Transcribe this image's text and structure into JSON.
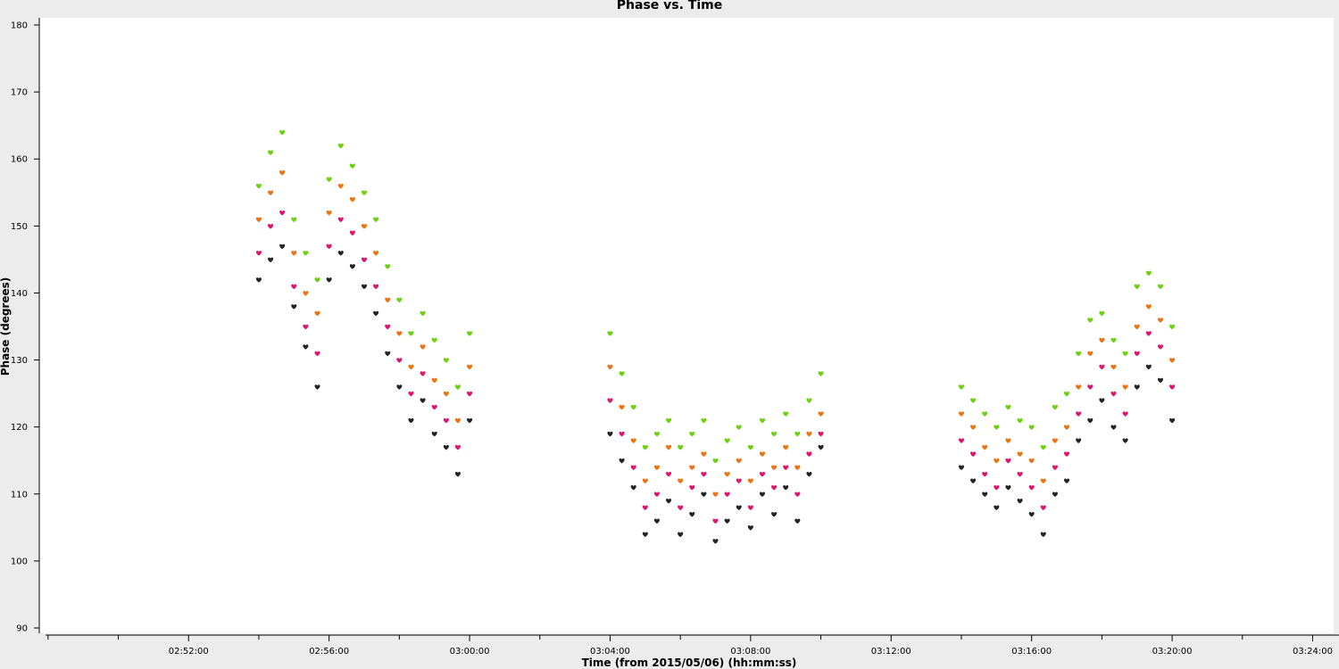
{
  "chart_data": {
    "type": "scatter",
    "title": "Phase vs. Time",
    "xlabel": "Time (from 2015/05/06) (hh:mm:ss)",
    "ylabel": "Phase (degrees)",
    "xlim": [
      "02:47:45",
      "03:24:45"
    ],
    "ylim": [
      90,
      180
    ],
    "xticks": [
      "02:52:00",
      "02:56:00",
      "03:00:00",
      "03:04:00",
      "03:08:00",
      "03:12:00",
      "03:16:00",
      "03:20:00",
      "03:24:00"
    ],
    "yticks": [
      90,
      100,
      110,
      120,
      130,
      140,
      150,
      160,
      170,
      180
    ],
    "grid": false,
    "marker": "heart",
    "colors": [
      "#232323",
      "#e0136f",
      "#ec7310",
      "#6bd210"
    ],
    "series": [
      {
        "color": "#232323",
        "points": [
          [
            "02:54:00",
            142
          ],
          [
            "02:54:20",
            145
          ],
          [
            "02:54:40",
            147
          ],
          [
            "02:55:00",
            138
          ],
          [
            "02:55:20",
            132
          ],
          [
            "02:55:40",
            126
          ],
          [
            "02:56:00",
            142
          ],
          [
            "02:56:20",
            146
          ],
          [
            "02:56:40",
            144
          ],
          [
            "02:57:00",
            141
          ],
          [
            "02:57:20",
            137
          ],
          [
            "02:57:40",
            131
          ],
          [
            "02:58:00",
            126
          ],
          [
            "02:58:20",
            121
          ],
          [
            "02:58:40",
            124
          ],
          [
            "02:59:00",
            119
          ],
          [
            "02:59:20",
            117
          ],
          [
            "02:59:40",
            113
          ],
          [
            "03:00:00",
            121
          ],
          [
            "03:04:00",
            119
          ],
          [
            "03:04:20",
            115
          ],
          [
            "03:04:40",
            111
          ],
          [
            "03:05:00",
            104
          ],
          [
            "03:05:20",
            106
          ],
          [
            "03:05:40",
            109
          ],
          [
            "03:06:00",
            104
          ],
          [
            "03:06:20",
            107
          ],
          [
            "03:06:40",
            110
          ],
          [
            "03:07:00",
            103
          ],
          [
            "03:07:20",
            106
          ],
          [
            "03:07:40",
            108
          ],
          [
            "03:08:00",
            105
          ],
          [
            "03:08:20",
            110
          ],
          [
            "03:08:40",
            107
          ],
          [
            "03:09:00",
            111
          ],
          [
            "03:09:20",
            106
          ],
          [
            "03:09:40",
            113
          ],
          [
            "03:10:00",
            117
          ],
          [
            "03:14:00",
            114
          ],
          [
            "03:14:20",
            112
          ],
          [
            "03:14:40",
            110
          ],
          [
            "03:15:00",
            108
          ],
          [
            "03:15:20",
            111
          ],
          [
            "03:15:40",
            109
          ],
          [
            "03:16:00",
            107
          ],
          [
            "03:16:20",
            104
          ],
          [
            "03:16:40",
            110
          ],
          [
            "03:17:00",
            112
          ],
          [
            "03:17:20",
            118
          ],
          [
            "03:17:40",
            121
          ],
          [
            "03:18:00",
            124
          ],
          [
            "03:18:20",
            120
          ],
          [
            "03:18:40",
            118
          ],
          [
            "03:19:00",
            126
          ],
          [
            "03:19:20",
            129
          ],
          [
            "03:19:40",
            127
          ],
          [
            "03:20:00",
            121
          ]
        ]
      },
      {
        "color": "#e0136f",
        "points": [
          [
            "02:54:00",
            146
          ],
          [
            "02:54:20",
            150
          ],
          [
            "02:54:40",
            152
          ],
          [
            "02:55:00",
            141
          ],
          [
            "02:55:20",
            135
          ],
          [
            "02:55:40",
            131
          ],
          [
            "02:56:00",
            147
          ],
          [
            "02:56:20",
            151
          ],
          [
            "02:56:40",
            149
          ],
          [
            "02:57:00",
            145
          ],
          [
            "02:57:20",
            141
          ],
          [
            "02:57:40",
            135
          ],
          [
            "02:58:00",
            130
          ],
          [
            "02:58:20",
            125
          ],
          [
            "02:58:40",
            128
          ],
          [
            "02:59:00",
            123
          ],
          [
            "02:59:20",
            121
          ],
          [
            "02:59:40",
            117
          ],
          [
            "03:00:00",
            125
          ],
          [
            "03:04:00",
            124
          ],
          [
            "03:04:20",
            119
          ],
          [
            "03:04:40",
            114
          ],
          [
            "03:05:00",
            108
          ],
          [
            "03:05:20",
            110
          ],
          [
            "03:05:40",
            113
          ],
          [
            "03:06:00",
            108
          ],
          [
            "03:06:20",
            111
          ],
          [
            "03:06:40",
            113
          ],
          [
            "03:07:00",
            106
          ],
          [
            "03:07:20",
            110
          ],
          [
            "03:07:40",
            112
          ],
          [
            "03:08:00",
            108
          ],
          [
            "03:08:20",
            113
          ],
          [
            "03:08:40",
            111
          ],
          [
            "03:09:00",
            114
          ],
          [
            "03:09:20",
            110
          ],
          [
            "03:09:40",
            116
          ],
          [
            "03:10:00",
            119
          ],
          [
            "03:14:00",
            118
          ],
          [
            "03:14:20",
            116
          ],
          [
            "03:14:40",
            113
          ],
          [
            "03:15:00",
            111
          ],
          [
            "03:15:20",
            115
          ],
          [
            "03:15:40",
            113
          ],
          [
            "03:16:00",
            111
          ],
          [
            "03:16:20",
            108
          ],
          [
            "03:16:40",
            114
          ],
          [
            "03:17:00",
            116
          ],
          [
            "03:17:20",
            122
          ],
          [
            "03:17:40",
            126
          ],
          [
            "03:18:00",
            129
          ],
          [
            "03:18:20",
            125
          ],
          [
            "03:18:40",
            122
          ],
          [
            "03:19:00",
            131
          ],
          [
            "03:19:20",
            134
          ],
          [
            "03:19:40",
            132
          ],
          [
            "03:20:00",
            126
          ]
        ]
      },
      {
        "color": "#ec7310",
        "points": [
          [
            "02:54:00",
            151
          ],
          [
            "02:54:20",
            155
          ],
          [
            "02:54:40",
            158
          ],
          [
            "02:55:00",
            146
          ],
          [
            "02:55:20",
            140
          ],
          [
            "02:55:40",
            137
          ],
          [
            "02:56:00",
            152
          ],
          [
            "02:56:20",
            156
          ],
          [
            "02:56:40",
            154
          ],
          [
            "02:57:00",
            150
          ],
          [
            "02:57:20",
            146
          ],
          [
            "02:57:40",
            139
          ],
          [
            "02:58:00",
            134
          ],
          [
            "02:58:20",
            129
          ],
          [
            "02:58:40",
            132
          ],
          [
            "02:59:00",
            127
          ],
          [
            "02:59:20",
            125
          ],
          [
            "02:59:40",
            121
          ],
          [
            "03:00:00",
            129
          ],
          [
            "03:04:00",
            129
          ],
          [
            "03:04:20",
            123
          ],
          [
            "03:04:40",
            118
          ],
          [
            "03:05:00",
            112
          ],
          [
            "03:05:20",
            114
          ],
          [
            "03:05:40",
            117
          ],
          [
            "03:06:00",
            112
          ],
          [
            "03:06:20",
            114
          ],
          [
            "03:06:40",
            116
          ],
          [
            "03:07:00",
            110
          ],
          [
            "03:07:20",
            113
          ],
          [
            "03:07:40",
            115
          ],
          [
            "03:08:00",
            112
          ],
          [
            "03:08:20",
            116
          ],
          [
            "03:08:40",
            114
          ],
          [
            "03:09:00",
            117
          ],
          [
            "03:09:20",
            114
          ],
          [
            "03:09:40",
            119
          ],
          [
            "03:10:00",
            122
          ],
          [
            "03:14:00",
            122
          ],
          [
            "03:14:20",
            120
          ],
          [
            "03:14:40",
            117
          ],
          [
            "03:15:00",
            115
          ],
          [
            "03:15:20",
            118
          ],
          [
            "03:15:40",
            116
          ],
          [
            "03:16:00",
            115
          ],
          [
            "03:16:20",
            112
          ],
          [
            "03:16:40",
            118
          ],
          [
            "03:17:00",
            120
          ],
          [
            "03:17:20",
            126
          ],
          [
            "03:17:40",
            131
          ],
          [
            "03:18:00",
            133
          ],
          [
            "03:18:20",
            129
          ],
          [
            "03:18:40",
            126
          ],
          [
            "03:19:00",
            135
          ],
          [
            "03:19:20",
            138
          ],
          [
            "03:19:40",
            136
          ],
          [
            "03:20:00",
            130
          ]
        ]
      },
      {
        "color": "#6bd210",
        "points": [
          [
            "02:54:00",
            156
          ],
          [
            "02:54:20",
            161
          ],
          [
            "02:54:40",
            164
          ],
          [
            "02:55:00",
            151
          ],
          [
            "02:55:20",
            146
          ],
          [
            "02:55:40",
            142
          ],
          [
            "02:56:00",
            157
          ],
          [
            "02:56:20",
            162
          ],
          [
            "02:56:40",
            159
          ],
          [
            "02:57:00",
            155
          ],
          [
            "02:57:20",
            151
          ],
          [
            "02:57:40",
            144
          ],
          [
            "02:58:00",
            139
          ],
          [
            "02:58:20",
            134
          ],
          [
            "02:58:40",
            137
          ],
          [
            "02:59:00",
            133
          ],
          [
            "02:59:20",
            130
          ],
          [
            "02:59:40",
            126
          ],
          [
            "03:00:00",
            134
          ],
          [
            "03:04:00",
            134
          ],
          [
            "03:04:20",
            128
          ],
          [
            "03:04:40",
            123
          ],
          [
            "03:05:00",
            117
          ],
          [
            "03:05:20",
            119
          ],
          [
            "03:05:40",
            121
          ],
          [
            "03:06:00",
            117
          ],
          [
            "03:06:20",
            119
          ],
          [
            "03:06:40",
            121
          ],
          [
            "03:07:00",
            115
          ],
          [
            "03:07:20",
            118
          ],
          [
            "03:07:40",
            120
          ],
          [
            "03:08:00",
            117
          ],
          [
            "03:08:20",
            121
          ],
          [
            "03:08:40",
            119
          ],
          [
            "03:09:00",
            122
          ],
          [
            "03:09:20",
            119
          ],
          [
            "03:09:40",
            124
          ],
          [
            "03:10:00",
            128
          ],
          [
            "03:14:00",
            126
          ],
          [
            "03:14:20",
            124
          ],
          [
            "03:14:40",
            122
          ],
          [
            "03:15:00",
            120
          ],
          [
            "03:15:20",
            123
          ],
          [
            "03:15:40",
            121
          ],
          [
            "03:16:00",
            120
          ],
          [
            "03:16:20",
            117
          ],
          [
            "03:16:40",
            123
          ],
          [
            "03:17:00",
            125
          ],
          [
            "03:17:20",
            131
          ],
          [
            "03:17:40",
            136
          ],
          [
            "03:18:00",
            137
          ],
          [
            "03:18:20",
            133
          ],
          [
            "03:18:40",
            131
          ],
          [
            "03:19:00",
            141
          ],
          [
            "03:19:20",
            143
          ],
          [
            "03:19:40",
            141
          ],
          [
            "03:20:00",
            135
          ]
        ]
      }
    ]
  }
}
